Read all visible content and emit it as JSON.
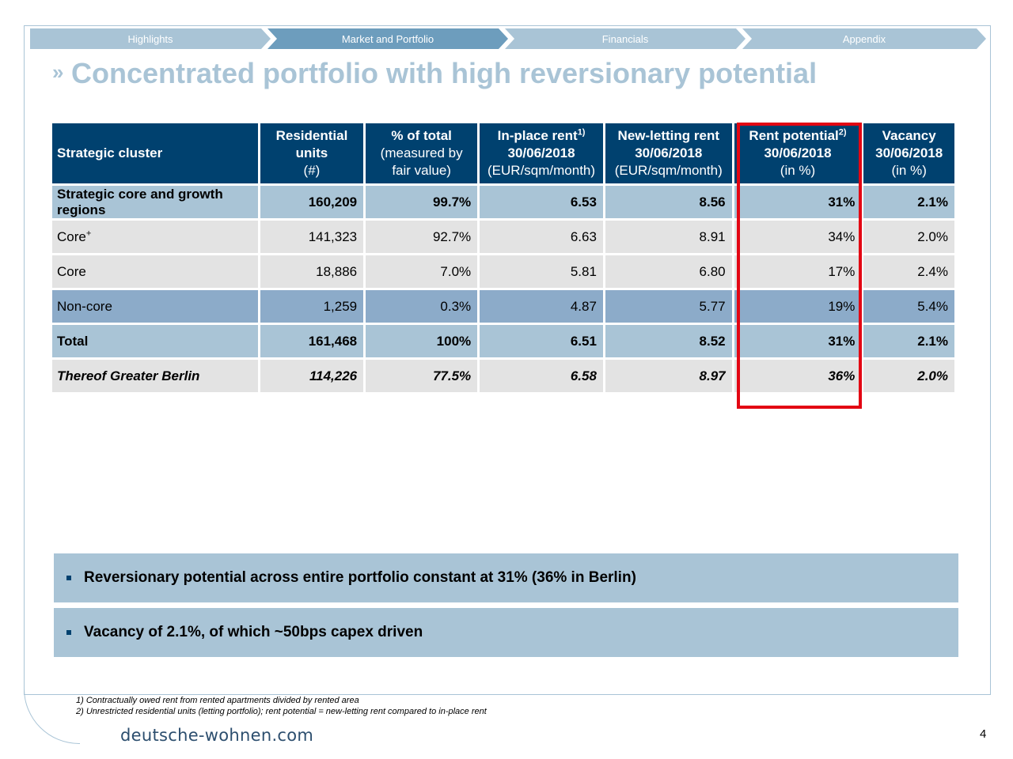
{
  "nav": {
    "tabs": [
      {
        "label": "Highlights",
        "color": "#a9c4d6"
      },
      {
        "label": "Market and Portfolio",
        "color": "#6d9dbd"
      },
      {
        "label": "Financials",
        "color": "#a9c4d6"
      },
      {
        "label": "Appendix",
        "color": "#a9c4d6"
      }
    ]
  },
  "title": {
    "marker": "»",
    "text": "Concentrated portfolio with high reversionary potential"
  },
  "table": {
    "headers": {
      "cluster": "Strategic cluster",
      "units_l1": "Residential",
      "units_l2": "units",
      "units_l3": "(#)",
      "pct_l1": "% of total",
      "pct_l2": "(measured by",
      "pct_l3": "fair value)",
      "inplace_l1": "In-place rent",
      "inplace_sup": "1)",
      "inplace_l2": "30/06/2018",
      "inplace_l3": "(EUR/sqm/month)",
      "newlet_l1": "New-letting rent",
      "newlet_l2": "30/06/2018",
      "newlet_l3": "(EUR/sqm/month)",
      "potential_l1": "Rent potential",
      "potential_sup": "2)",
      "potential_l2": "30/06/2018",
      "potential_l3": "(in %)",
      "vacancy_l1": "Vacancy",
      "vacancy_l2": "30/06/2018",
      "vacancy_l3": "(in %)"
    },
    "rows": [
      {
        "label": "Strategic core and growth regions",
        "units": "160,209",
        "pct": "99.7%",
        "inplace": "6.53",
        "newlet": "8.56",
        "potential": "31%",
        "vacancy": "2.1%"
      },
      {
        "label": "Core",
        "label_sup": "+",
        "units": "141,323",
        "pct": "92.7%",
        "inplace": "6.63",
        "newlet": "8.91",
        "potential": "34%",
        "vacancy": "2.0%"
      },
      {
        "label": "Core",
        "units": "18,886",
        "pct": "7.0%",
        "inplace": "5.81",
        "newlet": "6.80",
        "potential": "17%",
        "vacancy": "2.4%"
      },
      {
        "label": "Non-core",
        "units": "1,259",
        "pct": "0.3%",
        "inplace": "4.87",
        "newlet": "5.77",
        "potential": "19%",
        "vacancy": "5.4%"
      },
      {
        "label": "Total",
        "units": "161,468",
        "pct": "100%",
        "inplace": "6.51",
        "newlet": "8.52",
        "potential": "31%",
        "vacancy": "2.1%"
      },
      {
        "label": "Thereof Greater Berlin",
        "units": "114,226",
        "pct": "77.5%",
        "inplace": "6.58",
        "newlet": "8.97",
        "potential": "36%",
        "vacancy": "2.0%"
      }
    ]
  },
  "callouts": [
    "Reversionary potential across entire portfolio constant at  31% (36% in Berlin)",
    "Vacancy of 2.1%, of which ~50bps capex driven"
  ],
  "footnotes": [
    "1) Contractually owed rent from rented apartments divided by rented area",
    "2) Unrestricted residential units (letting portfolio); rent potential = new-letting rent compared to in-place rent"
  ],
  "logo": "deutsche-wohnen.com",
  "page_number": "4",
  "colors": {
    "header_dark": "#00416f",
    "row_light_blue": "#a9c4d6",
    "row_grey": "#e3e3e3",
    "row_mid_blue": "#8cabc9",
    "highlight_red": "#e30613"
  }
}
